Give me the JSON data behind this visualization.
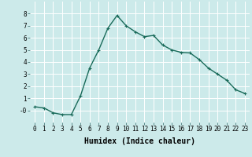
{
  "x": [
    0,
    1,
    2,
    3,
    4,
    5,
    6,
    7,
    8,
    9,
    10,
    11,
    12,
    13,
    14,
    15,
    16,
    17,
    18,
    19,
    20,
    21,
    22,
    23
  ],
  "y": [
    0.3,
    0.2,
    -0.2,
    -0.35,
    -0.35,
    1.2,
    3.5,
    5.0,
    6.8,
    7.85,
    7.0,
    6.5,
    6.1,
    6.2,
    5.4,
    5.0,
    4.8,
    4.75,
    4.2,
    3.5,
    3.0,
    2.5,
    1.7,
    1.4
  ],
  "line_color": "#1a6b5a",
  "marker": "+",
  "marker_size": 3.5,
  "line_width": 1.0,
  "bg_color": "#cceaea",
  "grid_color": "#ffffff",
  "xlabel": "Humidex (Indice chaleur)",
  "ylim": [
    -1,
    9
  ],
  "xlim": [
    -0.5,
    23.5
  ],
  "yticks": [
    0,
    1,
    2,
    3,
    4,
    5,
    6,
    7,
    8
  ],
  "ytick_labels": [
    "-0",
    "1",
    "2",
    "3",
    "4",
    "5",
    "6",
    "7",
    "8"
  ],
  "xtick_labels": [
    "0",
    "1",
    "2",
    "3",
    "4",
    "5",
    "6",
    "7",
    "8",
    "9",
    "10",
    "11",
    "12",
    "13",
    "14",
    "15",
    "16",
    "17",
    "18",
    "19",
    "20",
    "21",
    "22",
    "23"
  ],
  "tick_fontsize": 5.5,
  "xlabel_fontsize": 7.0
}
